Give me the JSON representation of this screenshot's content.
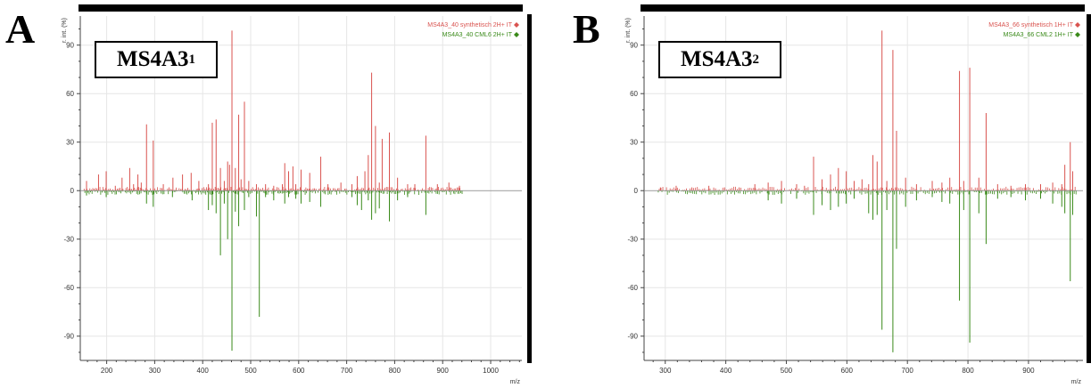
{
  "chart_data": [
    {
      "type": "bar",
      "panel_letter": "A",
      "label": "MS4A3",
      "label_subscript": "1",
      "ylabel": "r. int. (%)",
      "xlabel": "m/z",
      "xlim": [
        145,
        1065
      ],
      "ylim": [
        -105,
        108
      ],
      "xticks": [
        200,
        300,
        400,
        500,
        600,
        700,
        800,
        900,
        1000
      ],
      "yticks": [
        90,
        60,
        30,
        0,
        -30,
        -60,
        -90
      ],
      "grid": true,
      "legend_position": "top-right",
      "colors": {
        "positive": "#d9534f",
        "negative": "#3a8a1a"
      },
      "series": [
        {
          "name": "MS4A3_40 synthetisch 2H+ IT",
          "color": "#d9534f",
          "x": [
            158,
            183,
            199,
            218,
            232,
            248,
            256,
            265,
            272,
            283,
            297,
            318,
            338,
            358,
            376,
            392,
            412,
            420,
            428,
            437,
            445,
            452,
            456,
            461,
            468,
            475,
            480,
            487,
            496,
            512,
            531,
            548,
            566,
            571,
            579,
            588,
            594,
            605,
            623,
            646,
            661,
            688,
            711,
            722,
            738,
            745,
            752,
            760,
            768,
            774,
            789,
            806,
            827,
            842,
            865,
            889,
            913,
            935
          ],
          "values": [
            6,
            10,
            12,
            3,
            8,
            14,
            4,
            10,
            5,
            41,
            31,
            4,
            8,
            10,
            11,
            6,
            4,
            42,
            44,
            14,
            6,
            18,
            16,
            99,
            14,
            47,
            7,
            55,
            6,
            4,
            4,
            3,
            4,
            17,
            12,
            15,
            4,
            13,
            11,
            21,
            4,
            5,
            4,
            9,
            12,
            22,
            73,
            40,
            5,
            32,
            36,
            8,
            4,
            4,
            34,
            4,
            5,
            3
          ]
        },
        {
          "name": "MS4A3_40 CML6 2H+ IT",
          "color": "#3a8a1a",
          "x": [
            158,
            199,
            283,
            297,
            337,
            378,
            412,
            420,
            428,
            437,
            445,
            452,
            461,
            468,
            475,
            487,
            496,
            512,
            518,
            531,
            548,
            571,
            579,
            594,
            605,
            623,
            646,
            711,
            722,
            731,
            745,
            752,
            760,
            768,
            789,
            806,
            827,
            865
          ],
          "values": [
            -3,
            -4,
            -8,
            -10,
            -4,
            -6,
            -12,
            -9,
            -14,
            -40,
            -8,
            -30,
            -99,
            -13,
            -22,
            -12,
            -4,
            -16,
            -78,
            -4,
            -6,
            -8,
            -4,
            -5,
            -8,
            -7,
            -10,
            -4,
            -9,
            -12,
            -6,
            -18,
            -14,
            -11,
            -19,
            -6,
            -4,
            -15
          ]
        }
      ],
      "legend_entries": [
        "MS4A3_40 synthetisch 2H+ IT",
        "MS4A3_40 CML6 2H+ IT"
      ]
    },
    {
      "type": "bar",
      "panel_letter": "B",
      "label": "MS4A3",
      "label_subscript": "2",
      "ylabel": "r. int. (%)",
      "xlabel": "m/z",
      "xlim": [
        265,
        990
      ],
      "ylim": [
        -105,
        108
      ],
      "xticks": [
        300,
        400,
        500,
        600,
        700,
        800,
        900
      ],
      "yticks": [
        90,
        60,
        30,
        0,
        -30,
        -60,
        -90
      ],
      "grid": true,
      "legend_position": "top-right",
      "colors": {
        "positive": "#d9534f",
        "negative": "#3a8a1a"
      },
      "series": [
        {
          "name": "MS4A3_66 synthetisch 1H+ IT",
          "color": "#d9534f",
          "x": [
            292,
            318,
            344,
            372,
            398,
            422,
            448,
            470,
            492,
            517,
            530,
            545,
            559,
            573,
            586,
            599,
            612,
            625,
            636,
            643,
            650,
            658,
            666,
            676,
            682,
            697,
            715,
            741,
            757,
            770,
            786,
            793,
            803,
            818,
            830,
            849,
            871,
            895,
            920,
            940,
            955,
            960,
            969,
            973
          ],
          "values": [
            2,
            3,
            2,
            3,
            2,
            2,
            4,
            5,
            6,
            4,
            3,
            21,
            7,
            10,
            14,
            12,
            6,
            7,
            4,
            22,
            18,
            99,
            6,
            87,
            37,
            8,
            4,
            6,
            5,
            8,
            74,
            6,
            76,
            8,
            48,
            4,
            3,
            4,
            4,
            5,
            4,
            16,
            30,
            12
          ]
        },
        {
          "name": "MS4A3_66 CML2 1H+ IT",
          "color": "#3a8a1a",
          "x": [
            470,
            492,
            517,
            545,
            559,
            573,
            586,
            599,
            612,
            636,
            643,
            650,
            658,
            666,
            676,
            682,
            697,
            715,
            741,
            757,
            770,
            786,
            793,
            803,
            818,
            830,
            849,
            871,
            895,
            920,
            940,
            955,
            960,
            969,
            973
          ],
          "values": [
            -6,
            -8,
            -5,
            -15,
            -9,
            -12,
            -10,
            -8,
            -5,
            -14,
            -18,
            -15,
            -86,
            -12,
            -100,
            -36,
            -10,
            -6,
            -4,
            -7,
            -8,
            -68,
            -12,
            -94,
            -14,
            -33,
            -5,
            -4,
            -6,
            -5,
            -8,
            -10,
            -14,
            -56,
            -15
          ]
        }
      ],
      "legend_entries": [
        "MS4A3_66 synthetisch 1H+ IT",
        "MS4A3_66 CML2 1H+ IT"
      ]
    }
  ]
}
